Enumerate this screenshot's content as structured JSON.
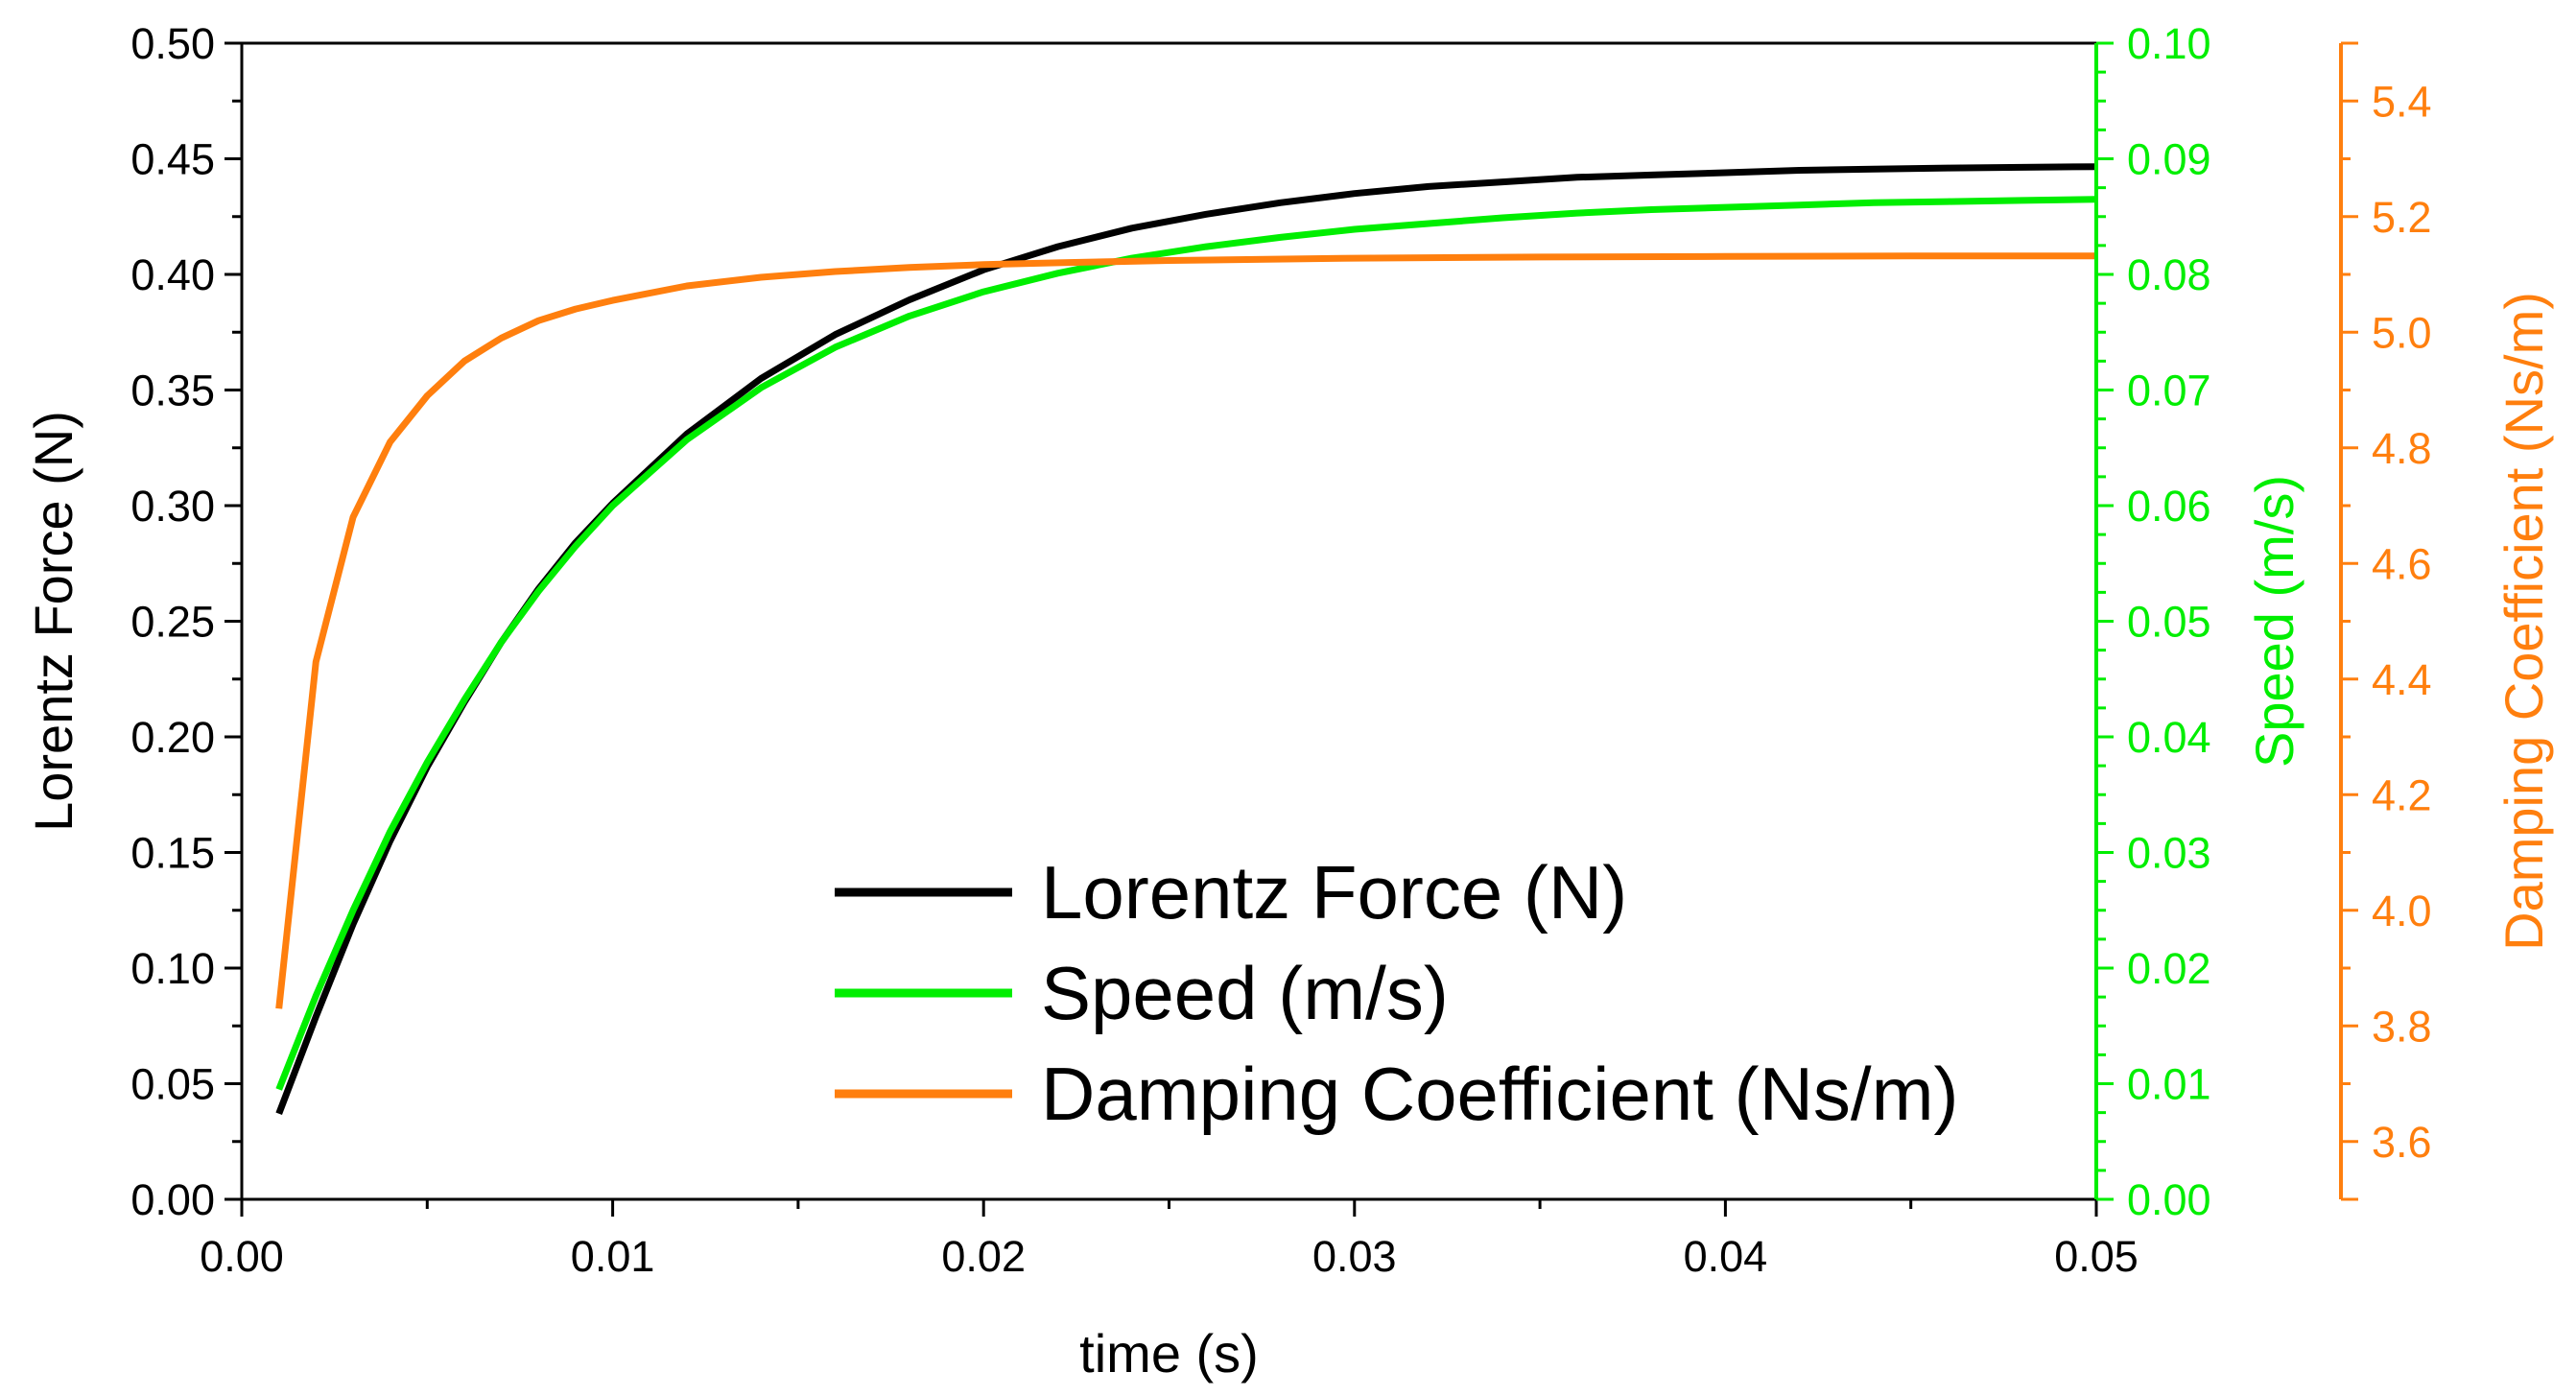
{
  "chart_data": {
    "type": "line",
    "title": "",
    "xlabel": "time (s)",
    "xlim": [
      0,
      0.05
    ],
    "x_ticks": [
      "0.00",
      "0.01",
      "0.02",
      "0.03",
      "0.04",
      "0.05"
    ],
    "x_tick_values": [
      0,
      0.01,
      0.02,
      0.03,
      0.04,
      0.05
    ],
    "grid": false,
    "legend_position": "bottom-center",
    "axes": [
      {
        "id": "left",
        "label": "Lorentz Force (N)",
        "color": "#000000",
        "ylim": [
          0,
          0.5
        ],
        "ticks": [
          "0.00",
          "0.05",
          "0.10",
          "0.15",
          "0.20",
          "0.25",
          "0.30",
          "0.35",
          "0.40",
          "0.45",
          "0.50"
        ],
        "tick_values": [
          0,
          0.05,
          0.1,
          0.15,
          0.2,
          0.25,
          0.3,
          0.35,
          0.4,
          0.45,
          0.5
        ]
      },
      {
        "id": "right1",
        "label": "Speed (m/s)",
        "color": "#00ee00",
        "ylim": [
          0,
          0.1
        ],
        "ticks": [
          "0.00",
          "0.01",
          "0.02",
          "0.03",
          "0.04",
          "0.05",
          "0.06",
          "0.07",
          "0.08",
          "0.09",
          "0.10"
        ],
        "tick_values": [
          0,
          0.01,
          0.02,
          0.03,
          0.04,
          0.05,
          0.06,
          0.07,
          0.08,
          0.09,
          0.1
        ]
      },
      {
        "id": "right2",
        "label": "Damping Coefficient (Ns/m)",
        "color": "#ff7f0e",
        "ylim": [
          3.5,
          5.5
        ],
        "ticks": [
          "3.6",
          "3.8",
          "4.0",
          "4.2",
          "4.4",
          "4.6",
          "4.8",
          "5.0",
          "5.2",
          "5.4"
        ],
        "tick_values": [
          3.6,
          3.8,
          4.0,
          4.2,
          4.4,
          4.6,
          4.8,
          5.0,
          5.2,
          5.4
        ]
      }
    ],
    "series": [
      {
        "name": "Lorentz Force (N)",
        "axis": "left",
        "color": "#000000",
        "x": [
          0.001,
          0.002,
          0.003,
          0.004,
          0.005,
          0.006,
          0.007,
          0.008,
          0.009,
          0.01,
          0.012,
          0.014,
          0.016,
          0.018,
          0.02,
          0.022,
          0.024,
          0.026,
          0.028,
          0.03,
          0.032,
          0.034,
          0.036,
          0.038,
          0.04,
          0.042,
          0.044,
          0.046,
          0.048,
          0.05
        ],
        "values": [
          0.037,
          0.079,
          0.119,
          0.155,
          0.187,
          0.215,
          0.241,
          0.264,
          0.284,
          0.301,
          0.331,
          0.355,
          0.374,
          0.389,
          0.402,
          0.412,
          0.42,
          0.426,
          0.431,
          0.435,
          0.438,
          0.44,
          0.442,
          0.443,
          0.444,
          0.445,
          0.4455,
          0.446,
          0.4463,
          0.4466
        ]
      },
      {
        "name": "Speed (m/s)",
        "axis": "right1",
        "color": "#00ee00",
        "x": [
          0.001,
          0.002,
          0.003,
          0.004,
          0.005,
          0.006,
          0.007,
          0.008,
          0.009,
          0.01,
          0.012,
          0.014,
          0.016,
          0.018,
          0.02,
          0.022,
          0.024,
          0.026,
          0.028,
          0.03,
          0.032,
          0.034,
          0.036,
          0.038,
          0.04,
          0.042,
          0.044,
          0.046,
          0.048,
          0.05
        ],
        "values": [
          0.0095,
          0.0176,
          0.025,
          0.0318,
          0.0378,
          0.0432,
          0.0482,
          0.0526,
          0.0565,
          0.06,
          0.0657,
          0.0702,
          0.0737,
          0.0764,
          0.0785,
          0.0801,
          0.0814,
          0.0824,
          0.0832,
          0.0839,
          0.0844,
          0.0849,
          0.0853,
          0.0856,
          0.0858,
          0.086,
          0.0862,
          0.0863,
          0.0864,
          0.0865
        ]
      },
      {
        "name": "Damping Coefficient (Ns/m)",
        "axis": "right2",
        "color": "#ff7f0e",
        "x": [
          0.001,
          0.002,
          0.003,
          0.004,
          0.005,
          0.006,
          0.007,
          0.008,
          0.009,
          0.01,
          0.012,
          0.014,
          0.016,
          0.018,
          0.02,
          0.022,
          0.025,
          0.03,
          0.035,
          0.04,
          0.045,
          0.05
        ],
        "values": [
          3.83,
          4.43,
          4.68,
          4.81,
          4.89,
          4.95,
          4.99,
          5.02,
          5.04,
          5.055,
          5.08,
          5.095,
          5.105,
          5.112,
          5.117,
          5.12,
          5.124,
          5.128,
          5.13,
          5.131,
          5.132,
          5.132
        ]
      }
    ]
  }
}
